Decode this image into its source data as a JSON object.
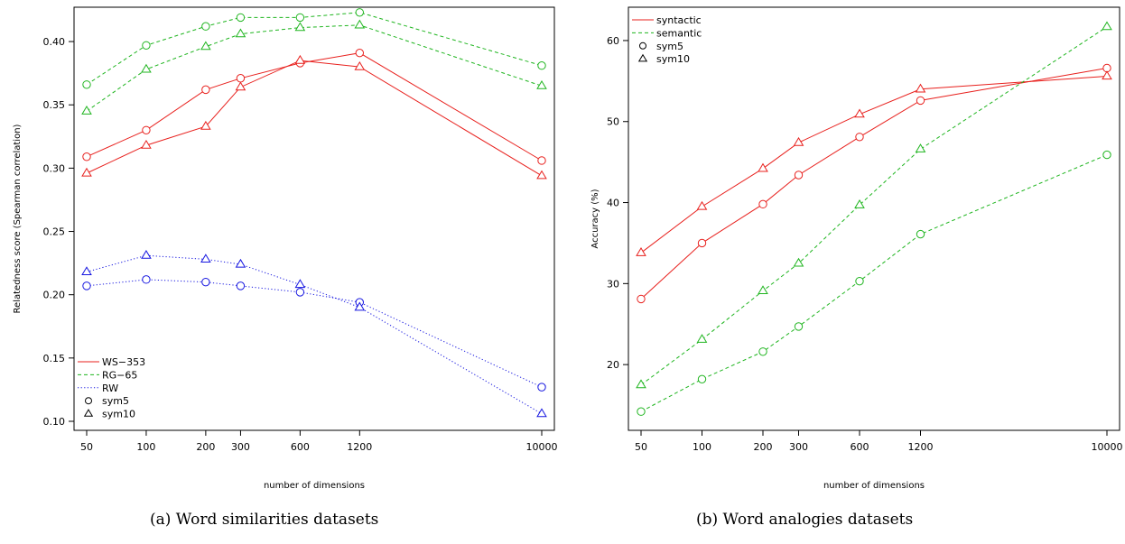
{
  "captions": {
    "left": "(a) Word similarities datasets",
    "right": "(b) Word analogies datasets"
  },
  "colors": {
    "red": "#e8201d",
    "green": "#1fb51f",
    "blue": "#1616e0"
  },
  "chart_data": [
    {
      "type": "line",
      "xlabel": "number of dimensions",
      "ylabel": "Relatedness score (Spearman correlation)",
      "x_scale": "log",
      "x": [
        50,
        100,
        200,
        300,
        600,
        1200,
        10000
      ],
      "x_tick_labels": [
        "50",
        "100",
        "200",
        "300",
        "600",
        "1200",
        "10000"
      ],
      "ylim": [
        0.1,
        0.42
      ],
      "y_ticks": [
        "0.10",
        "0.15",
        "0.20",
        "0.25",
        "0.30",
        "0.35",
        "0.40"
      ],
      "legend_position": "bottom-left",
      "legend": [
        {
          "label": "WS−353",
          "kind": "line",
          "color": "red",
          "dash": "solid"
        },
        {
          "label": "RG−65",
          "kind": "line",
          "color": "green",
          "dash": "dashed"
        },
        {
          "label": "RW",
          "kind": "line",
          "color": "blue",
          "dash": "dotted"
        },
        {
          "label": "sym5",
          "kind": "marker",
          "marker": "circle"
        },
        {
          "label": "sym10",
          "kind": "marker",
          "marker": "triangle"
        }
      ],
      "series": [
        {
          "dataset": "WS-353",
          "window": "sym5",
          "color": "red",
          "dash": "solid",
          "marker": "circle",
          "values": [
            0.309,
            0.33,
            0.362,
            0.371,
            0.383,
            0.391,
            0.306
          ]
        },
        {
          "dataset": "WS-353",
          "window": "sym10",
          "color": "red",
          "dash": "solid",
          "marker": "triangle",
          "values": [
            0.296,
            0.318,
            0.333,
            0.364,
            0.385,
            0.38,
            0.294
          ]
        },
        {
          "dataset": "RG-65",
          "window": "sym5",
          "color": "green",
          "dash": "dashed",
          "marker": "circle",
          "values": [
            0.366,
            0.397,
            0.412,
            0.419,
            0.419,
            0.423,
            0.381
          ]
        },
        {
          "dataset": "RG-65",
          "window": "sym10",
          "color": "green",
          "dash": "dashed",
          "marker": "triangle",
          "values": [
            0.345,
            0.378,
            0.396,
            0.406,
            0.411,
            0.413,
            0.365
          ]
        },
        {
          "dataset": "RW",
          "window": "sym5",
          "color": "blue",
          "dash": "dotted",
          "marker": "circle",
          "values": [
            0.207,
            0.212,
            0.21,
            0.207,
            0.202,
            0.194,
            0.127
          ]
        },
        {
          "dataset": "RW",
          "window": "sym10",
          "color": "blue",
          "dash": "dotted",
          "marker": "triangle",
          "values": [
            0.218,
            0.231,
            0.228,
            0.224,
            0.208,
            0.19,
            0.106
          ]
        }
      ]
    },
    {
      "type": "line",
      "xlabel": "number of dimensions",
      "ylabel": "Accuracy (%)",
      "x_scale": "log",
      "x": [
        50,
        100,
        200,
        300,
        600,
        1200,
        10000
      ],
      "x_tick_labels": [
        "50",
        "100",
        "200",
        "300",
        "600",
        "1200",
        "10000"
      ],
      "ylim": [
        13,
        63
      ],
      "y_ticks": [
        "20",
        "30",
        "40",
        "50",
        "60"
      ],
      "legend_position": "top-left",
      "legend": [
        {
          "label": "syntactic",
          "kind": "line",
          "color": "red",
          "dash": "solid"
        },
        {
          "label": "semantic",
          "kind": "line",
          "color": "green",
          "dash": "dashed"
        },
        {
          "label": "sym5",
          "kind": "marker",
          "marker": "circle"
        },
        {
          "label": "sym10",
          "kind": "marker",
          "marker": "triangle"
        }
      ],
      "series": [
        {
          "dataset": "syntactic",
          "window": "sym5",
          "color": "red",
          "dash": "solid",
          "marker": "circle",
          "values": [
            28.1,
            35.0,
            39.8,
            43.4,
            48.1,
            52.6,
            56.6
          ]
        },
        {
          "dataset": "syntactic",
          "window": "sym10",
          "color": "red",
          "dash": "solid",
          "marker": "triangle",
          "values": [
            33.8,
            39.5,
            44.2,
            47.4,
            50.9,
            54.0,
            55.6
          ]
        },
        {
          "dataset": "semantic",
          "window": "sym5",
          "color": "green",
          "dash": "dashed",
          "marker": "circle",
          "values": [
            14.2,
            18.2,
            21.6,
            24.7,
            30.3,
            36.1,
            45.9
          ]
        },
        {
          "dataset": "semantic",
          "window": "sym10",
          "color": "green",
          "dash": "dashed",
          "marker": "triangle",
          "values": [
            17.5,
            23.1,
            29.1,
            32.5,
            39.7,
            46.6,
            61.7
          ]
        }
      ]
    }
  ]
}
